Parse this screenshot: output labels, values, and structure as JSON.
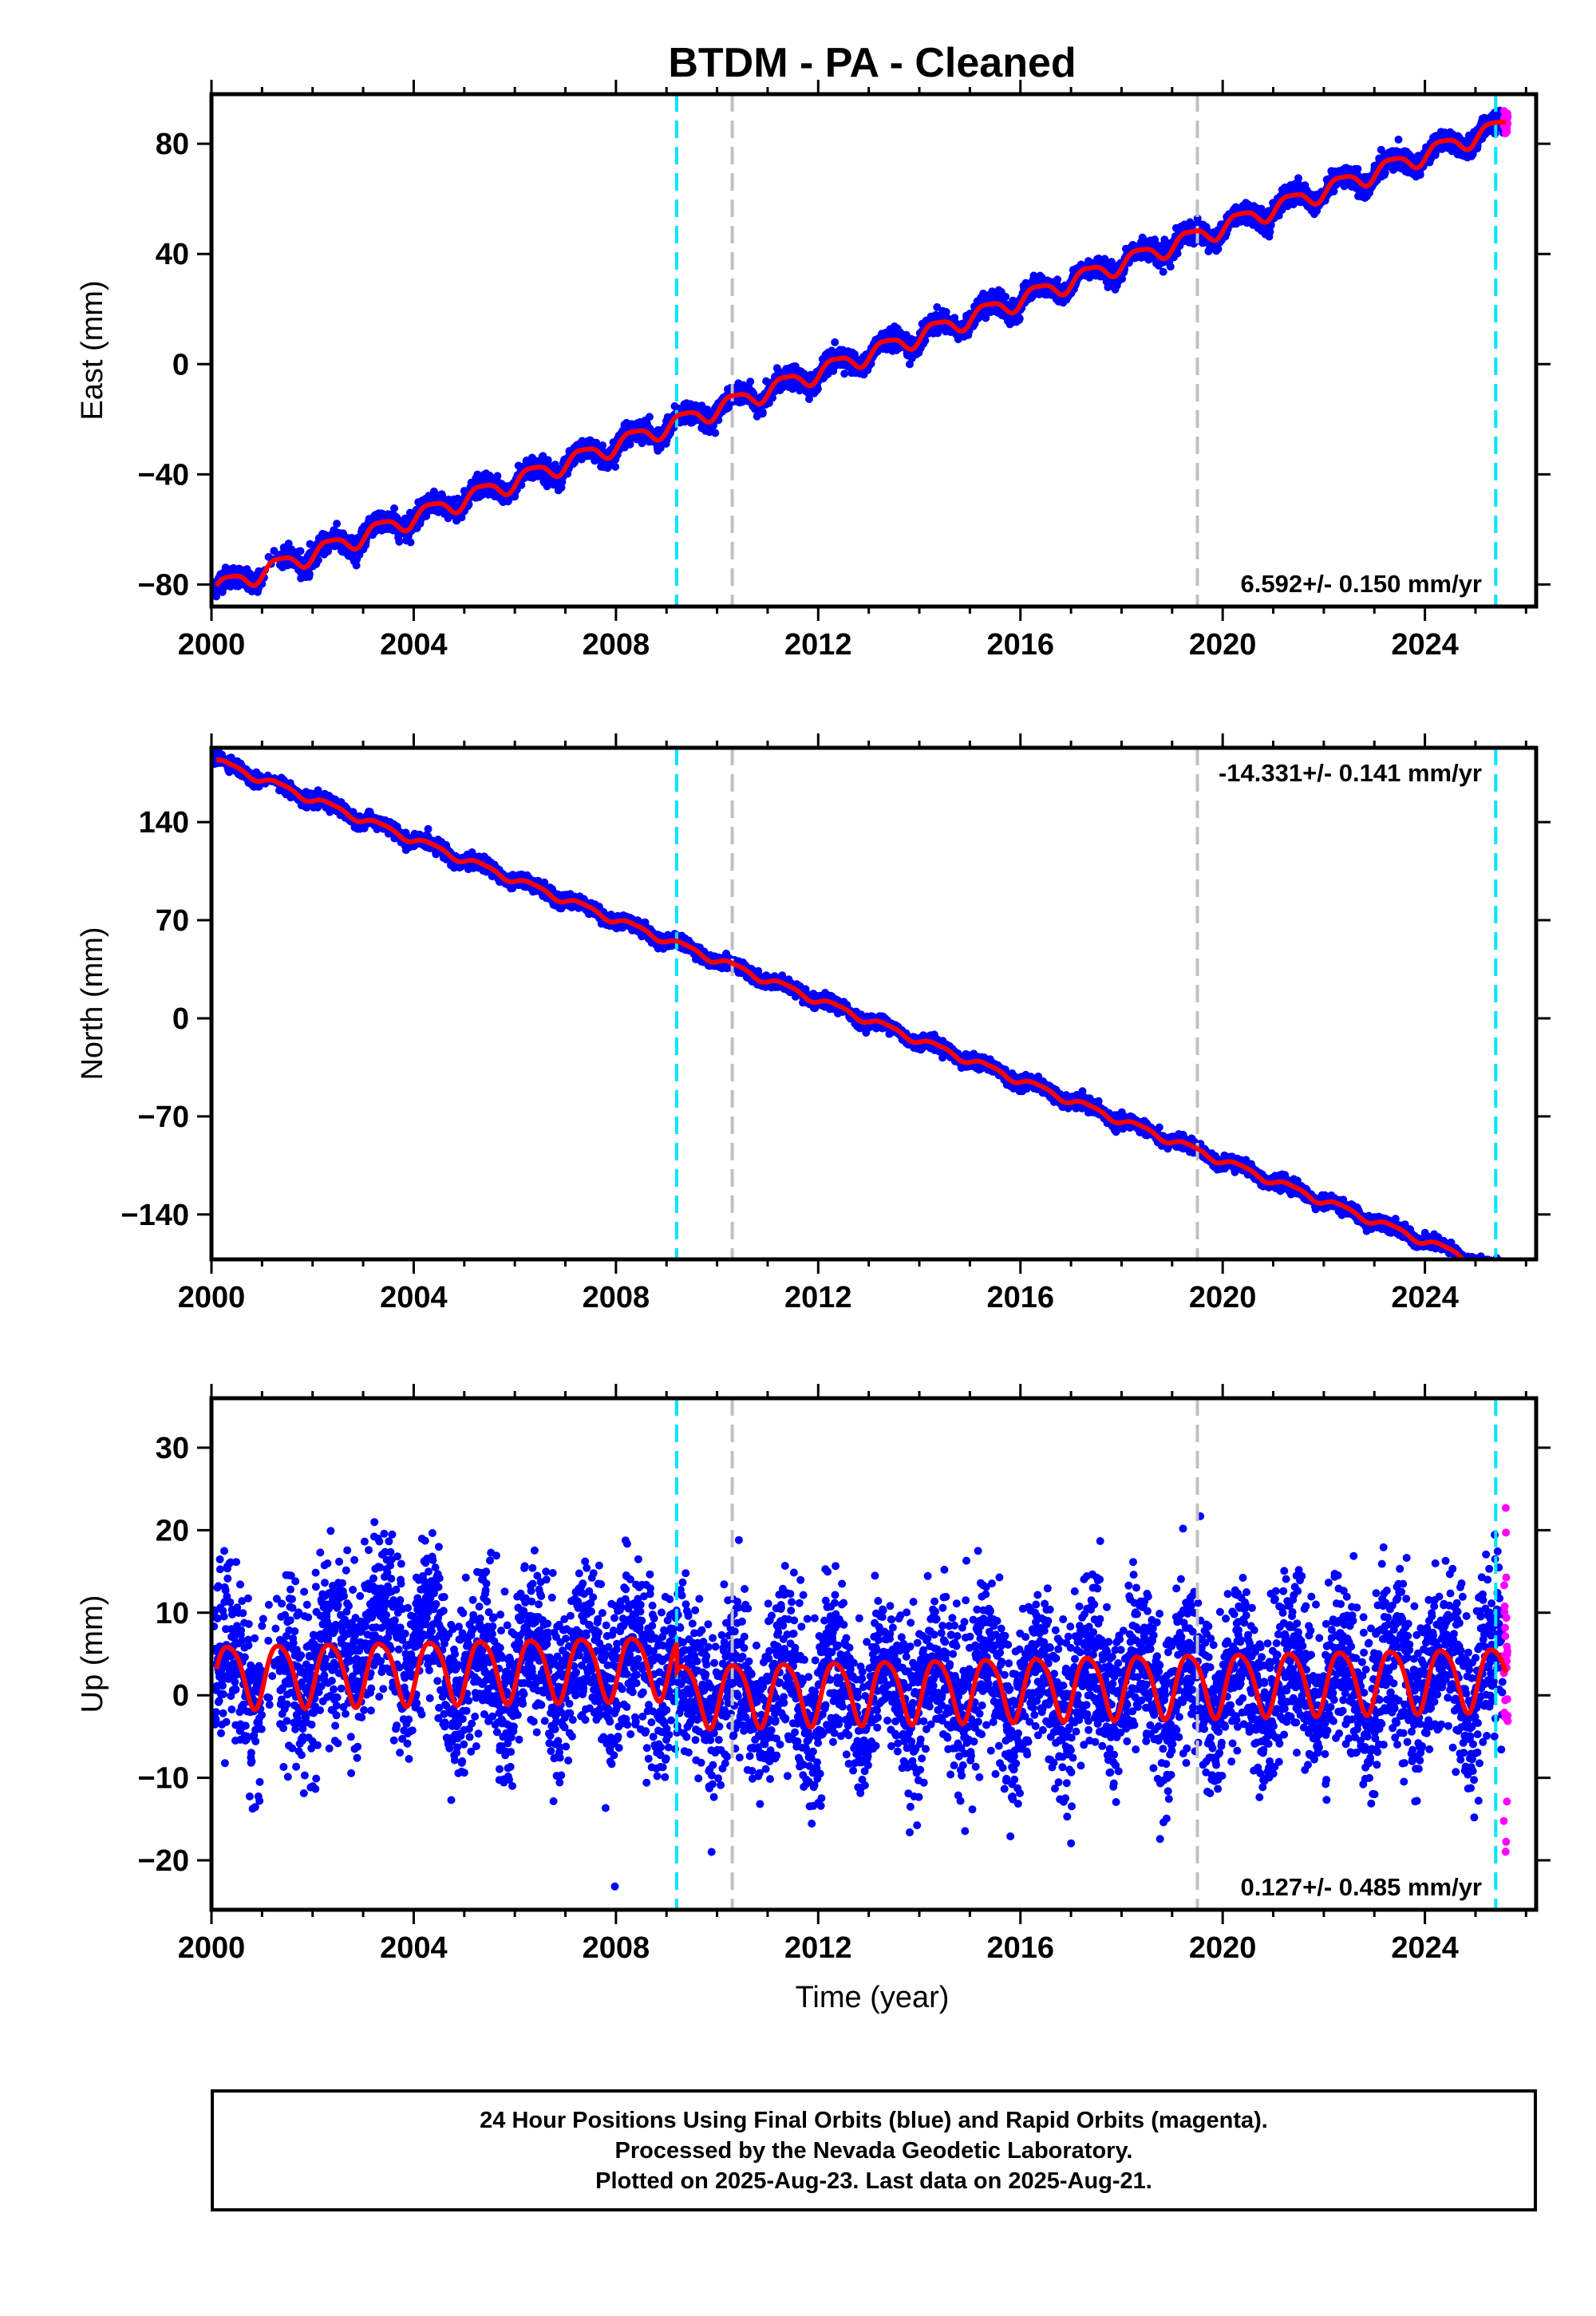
{
  "chart_data": {
    "type": "scatter",
    "title": "BTDM  - PA - Cleaned",
    "xlabel": "Time (year)",
    "xlim": [
      2000.0,
      2026.2
    ],
    "xticks": [
      2000,
      2004,
      2008,
      2012,
      2016,
      2020,
      2024
    ],
    "xtick_labels": [
      "2000",
      "2004",
      "2008",
      "2012",
      "2016",
      "2020",
      "2024"
    ],
    "reference_lines": {
      "cyan": [
        2009.2,
        2025.4
      ],
      "gray": [
        2010.3,
        2019.5
      ]
    },
    "series_colors": {
      "final_orbits": "#0000ff",
      "rapid_orbits": "#ff00ff",
      "model": "#ff0000",
      "cyan_lines": "#00e5ff",
      "gray_lines": "#c0c0c0"
    },
    "panels": [
      {
        "id": "east",
        "ylabel": "East (mm)",
        "ylim": [
          -88,
          98
        ],
        "yticks": [
          -80,
          -40,
          0,
          40,
          80
        ],
        "ytick_labels": [
          "−80",
          "−40",
          "0",
          "40",
          "80"
        ],
        "rate_label": "6.592+/- 0.150 mm/yr",
        "rate_position": "bottom-right",
        "model": {
          "offset": -82,
          "rate": 6.592,
          "annual_amplitude": 3.2,
          "semiannual_amplitude": 0.8,
          "noise": 1.8,
          "steps": [
            {
              "t": 2010.3,
              "dy": 0
            },
            {
              "t": 2019.5,
              "dy": 0
            }
          ]
        }
      },
      {
        "id": "north",
        "ylabel": "North (mm)",
        "ylim": [
          -172,
          193
        ],
        "yticks": [
          -140,
          -70,
          0,
          70,
          140
        ],
        "ytick_labels": [
          "−140",
          "−70",
          "0",
          "70",
          "140"
        ],
        "rate_label": "-14.331+/- 0.141 mm/yr",
        "rate_position": "top-right",
        "model": {
          "offset": 185,
          "rate": -14.331,
          "annual_amplitude": 2.5,
          "semiannual_amplitude": 0.7,
          "noise": 2.2,
          "steps": [
            {
              "t": 2010.3,
              "dy": 0
            },
            {
              "t": 2019.5,
              "dy": 0
            }
          ]
        }
      },
      {
        "id": "up",
        "ylabel": "Up (mm)",
        "ylim": [
          -26,
          36
        ],
        "yticks": [
          -20,
          -10,
          0,
          10,
          20,
          30
        ],
        "ytick_labels": [
          "−20",
          "−10",
          "0",
          "10",
          "20",
          "30"
        ],
        "rate_label": "0.127+/- 0.485 mm/yr",
        "rate_position": "bottom-right",
        "model": {
          "offset": 2.5,
          "rate": 0.127,
          "annual_amplitude": 3.8,
          "semiannual_amplitude": 0.6,
          "noise": 5.0,
          "steps": [
            {
              "t": 2009.2,
              "dy": -3.5
            },
            {
              "t": 2019.5,
              "dy": 0
            }
          ]
        }
      }
    ]
  },
  "footer": {
    "line1": "24 Hour Positions Using Final Orbits (blue) and Rapid Orbits (magenta).",
    "line2": "Processed by the Nevada Geodetic Laboratory.",
    "line3": "Plotted on 2025-Aug-23. Last data on 2025-Aug-21."
  }
}
